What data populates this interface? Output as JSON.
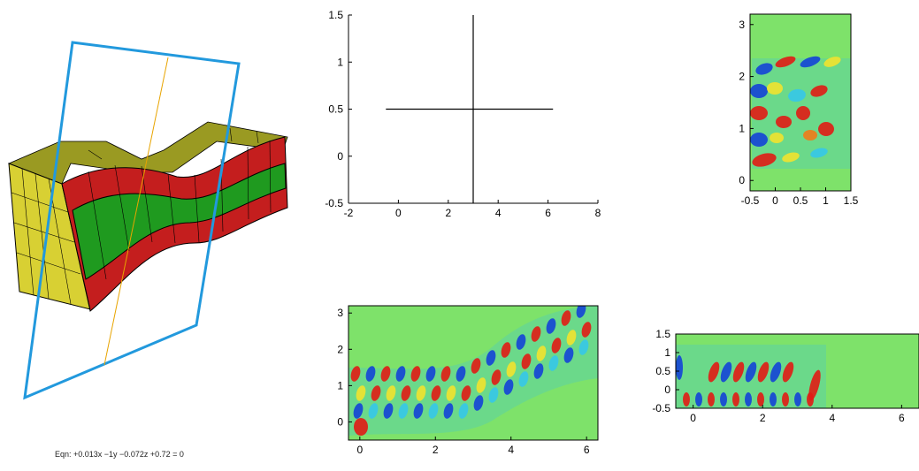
{
  "equation": "Eqn:  +0.013x −1y −0.072z +0.72 = 0",
  "colors": {
    "field_bg": "#7ee26a",
    "block_yellow": "#d8d033",
    "block_red": "#c41e1e",
    "block_green": "#1f9a1f",
    "plane": "#2299dd",
    "plane_line": "#e8a400"
  },
  "charts": {
    "cross": {
      "x_ticks": [
        "-2",
        "0",
        "2",
        "4",
        "6",
        "8"
      ],
      "y_ticks": [
        "-0.5",
        "0",
        "0.5",
        "1",
        "1.5"
      ]
    },
    "top_right": {
      "x_ticks": [
        "-0.5",
        "0",
        "0.5",
        "1",
        "1.5"
      ],
      "y_ticks": [
        "0",
        "1",
        "2",
        "3"
      ]
    },
    "bottom_mid": {
      "x_ticks": [
        "0",
        "2",
        "4",
        "6"
      ],
      "y_ticks": [
        "0",
        "1",
        "2",
        "3"
      ]
    },
    "bottom_right": {
      "x_ticks": [
        "0",
        "2",
        "4",
        "6"
      ],
      "y_ticks": [
        "-0.5",
        "0",
        "0.5",
        "1",
        "1.5"
      ]
    }
  },
  "chart_data": [
    {
      "type": "line",
      "xlim": [
        -2,
        8
      ],
      "ylim": [
        -0.5,
        1.5
      ],
      "series": [
        {
          "x": [
            -0.5,
            6.2
          ],
          "y": [
            0.5,
            0.5
          ]
        },
        {
          "x": [
            3,
            3
          ],
          "y": [
            -0.5,
            1.5
          ]
        }
      ]
    },
    {
      "type": "heatmap",
      "xlim": [
        -0.5,
        1.5
      ],
      "ylim": [
        -0.2,
        3.2
      ]
    },
    {
      "type": "heatmap",
      "xlim": [
        -0.3,
        6.3
      ],
      "ylim": [
        -0.5,
        3.2
      ]
    },
    {
      "type": "heatmap",
      "xlim": [
        -0.5,
        6.5
      ],
      "ylim": [
        -0.5,
        1.5
      ]
    }
  ]
}
